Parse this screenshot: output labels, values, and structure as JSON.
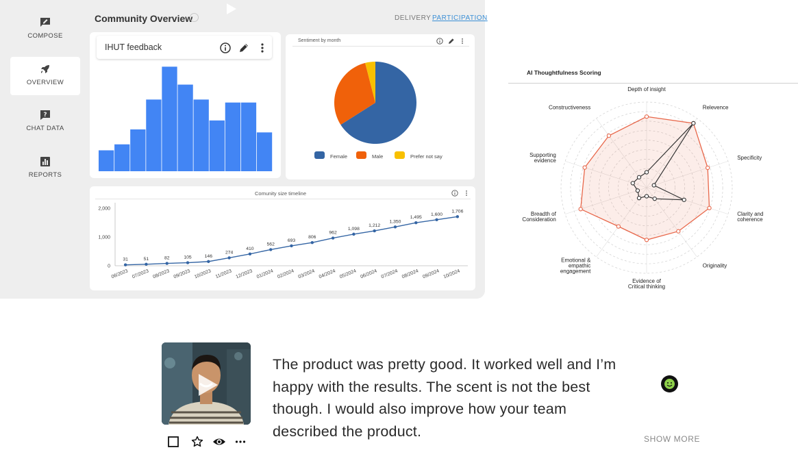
{
  "sidebar": {
    "items": [
      {
        "label": "COMPOSE",
        "icon": "compose-icon"
      },
      {
        "label": "OVERVIEW",
        "icon": "rocket-icon",
        "active": true
      },
      {
        "label": "CHAT DATA",
        "icon": "chat-question-icon"
      },
      {
        "label": "REPORTS",
        "icon": "reports-icon"
      }
    ]
  },
  "header": {
    "title": "Community Overview",
    "tabs": [
      {
        "label": "DELIVERY",
        "active": false
      },
      {
        "label": "PARTICIPATION",
        "active": true
      }
    ]
  },
  "ihut_card": {
    "title": "IHUT feedback",
    "icons": [
      "info-icon",
      "edit-icon",
      "more-vertical-icon"
    ]
  },
  "sentiment_card": {
    "title": "Sentiment by month"
  },
  "timeline_card": {
    "title": "Comunity size timeline"
  },
  "radar_card": {
    "title": "AI Thoughtfulness Scoring"
  },
  "feedback": {
    "text": "The product was pretty good. It worked well and I’m happy with the results. The scent is not the best though. I would also improve how your team described the product.",
    "show_more_label": "SHOW MORE",
    "actions": [
      "checkbox-icon",
      "star-icon",
      "eye-icon",
      "more-horizontal-icon"
    ]
  },
  "colors": {
    "bar_blue": "#4285f4",
    "pie_blue": "#3465a4",
    "pie_orange": "#f0610a",
    "pie_yellow": "#f8c000",
    "radar_red": "#e8674a",
    "link_blue": "#3b8fd6",
    "dashboard_bg": "#eeeeee"
  },
  "chart_data": [
    {
      "type": "bar",
      "title": "IHUT feedback",
      "values": [
        7,
        9,
        14,
        24,
        35,
        29,
        24,
        17,
        23,
        23,
        13
      ],
      "ylim": [
        0,
        36
      ],
      "grid": false,
      "legend": "none"
    },
    {
      "type": "pie",
      "title": "Sentiment by month",
      "categories": [
        "Female",
        "Male",
        "Prefer not say"
      ],
      "values": [
        66,
        30,
        4
      ],
      "legend": "bottom"
    },
    {
      "type": "line",
      "title": "Comunity size timeline",
      "x": [
        "06/2023",
        "07/2023",
        "08/2023",
        "09/2023",
        "10/2023",
        "11/2023",
        "12/2023",
        "01/2024",
        "02/2024",
        "03/2024",
        "04/2024",
        "05/2024",
        "06/2024",
        "07/2024",
        "08/2024",
        "09/2024",
        "10/2024"
      ],
      "y": [
        31,
        51,
        82,
        105,
        146,
        274,
        410,
        562,
        693,
        806,
        962,
        1098,
        1212,
        1350,
        1495,
        1600,
        1706
      ],
      "ylim": [
        0,
        2000
      ],
      "yticks": [
        "0",
        "1,000",
        "2,000"
      ],
      "data_labels": [
        "31",
        "51",
        "82",
        "105",
        "146",
        "274",
        "410",
        "562",
        "693",
        "806",
        "962",
        "1,098",
        "1,212",
        "1,350",
        "1,495",
        "1,600",
        "1,706"
      ],
      "grid": false
    },
    {
      "type": "radar",
      "title": "AI Thoughtfulness Scoring",
      "categories": [
        "Depth of insight",
        "Relevence",
        "Specificity",
        "Clarity and coherence",
        "Originality",
        "Evidence of Critical thinking",
        "Emotional & empathic engagement",
        "Breadth of Consideration",
        "Supporting evidence",
        "Constructiveness"
      ],
      "label_lines": [
        [
          "Depth of insight"
        ],
        [
          "Relevence"
        ],
        [
          "Specificity"
        ],
        [
          "Clarity and",
          "coherence"
        ],
        [
          "Originality"
        ],
        [
          "Evidence of",
          "Critical thinking"
        ],
        [
          "Emotional &",
          "empathic",
          "engagement"
        ],
        [
          "Breadth of",
          "Consideration"
        ],
        [
          "Supporting",
          "evidence"
        ],
        [
          "Constructiveness"
        ]
      ],
      "rmax": 10,
      "series": [
        {
          "values": [
            8.3,
            9.3,
            7.5,
            7.7,
            6.3,
            6.1,
            5.6,
            8.1,
            7.6,
            7.5
          ]
        },
        {
          "values": [
            1.8,
            9.3,
            0.9,
            4.6,
            1.6,
            1.0,
            1.5,
            1.1,
            1.7,
            1.5
          ]
        }
      ],
      "grid": true
    }
  ]
}
